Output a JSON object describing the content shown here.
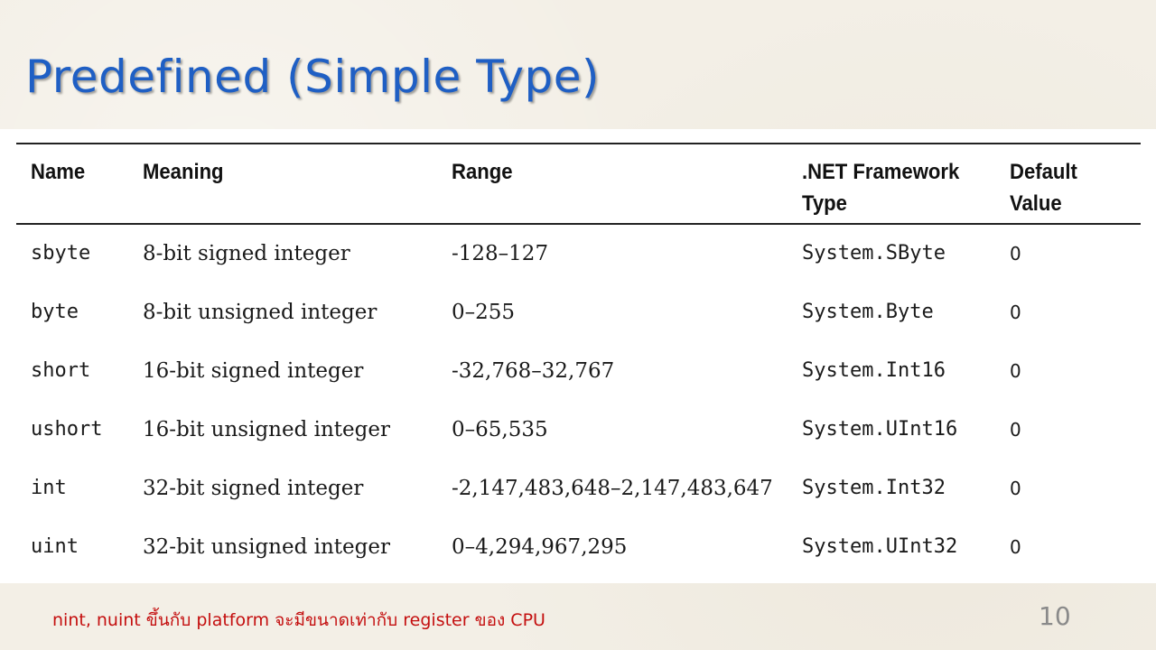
{
  "slide": {
    "title": "Predefined  (Simple Type)",
    "note": "nint, nuint ขึ้นกับ platform จะมีขนาดเท่ากับ register ของ CPU",
    "page_number": "10"
  },
  "table": {
    "headers": {
      "name": "Name",
      "meaning": "Meaning",
      "range": "Range",
      "net_line1": ".NET Framework",
      "net_line2": "Type",
      "default_line1": "Default",
      "default_line2": "Value"
    },
    "rows": [
      {
        "name": "sbyte",
        "meaning": "8-bit signed integer",
        "range": "-128–127",
        "net": "System.SByte",
        "default": "0"
      },
      {
        "name": "byte",
        "meaning": "8-bit unsigned integer",
        "range": "0–255",
        "net": "System.Byte",
        "default": "0"
      },
      {
        "name": "short",
        "meaning": "16-bit signed integer",
        "range": "-32,768–32,767",
        "net": "System.Int16",
        "default": "0"
      },
      {
        "name": "ushort",
        "meaning": "16-bit unsigned integer",
        "range": "0–65,535",
        "net": "System.UInt16",
        "default": "0"
      },
      {
        "name": "int",
        "meaning": "32-bit signed integer",
        "range": "-2,147,483,648–2,147,483,647",
        "net": "System.Int32",
        "default": "0"
      },
      {
        "name": "uint",
        "meaning": "32-bit unsigned integer",
        "range": "0–4,294,967,295",
        "net": "System.UInt32",
        "default": "0"
      }
    ]
  }
}
